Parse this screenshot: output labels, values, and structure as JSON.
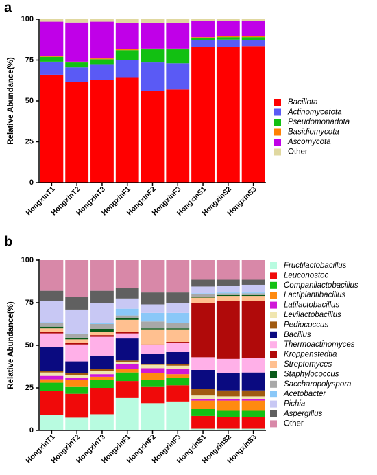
{
  "chart_data": [
    {
      "type": "bar",
      "panel": "a",
      "y_label": "Relative Abundance(%)",
      "categories": [
        "HongxinT1",
        "HongxinT2",
        "HongxinT3",
        "HongxinF1",
        "HongxinF2",
        "HongxinF3",
        "HongxinS1",
        "HongxinS2",
        "HongxinS3"
      ],
      "ylim": [
        0,
        100
      ],
      "yticks": [
        0,
        25,
        50,
        75,
        100
      ],
      "series": [
        {
          "name": "Bacillota",
          "color": "#ff0000",
          "values": [
            66,
            61.5,
            63,
            64.5,
            56,
            57,
            83,
            83,
            83.5
          ]
        },
        {
          "name": "Actinomycetota",
          "color": "#5a5af5",
          "values": [
            8,
            9,
            9.5,
            10.5,
            17.5,
            16,
            4,
            4.5,
            3.5
          ]
        },
        {
          "name": "Pseudomonadota",
          "color": "#12c012",
          "values": [
            3,
            3,
            3,
            6,
            8,
            8.5,
            1.5,
            1.5,
            2
          ]
        },
        {
          "name": "Basidiomycota",
          "color": "#ff8000",
          "values": [
            0.5,
            0.5,
            0.5,
            0.5,
            0.5,
            0.5,
            0.5,
            0.5,
            0.5
          ]
        },
        {
          "name": "Ascomycota",
          "color": "#c000e8",
          "values": [
            21,
            24,
            22.5,
            16,
            15.5,
            15.5,
            10,
            9.5,
            9.5
          ]
        },
        {
          "name": "Other",
          "color": "#e0d8a0",
          "values": [
            1.5,
            2,
            1.5,
            2.5,
            2.5,
            2.5,
            1,
            1,
            1
          ]
        }
      ]
    },
    {
      "type": "bar",
      "panel": "b",
      "y_label": "Relative Abundance(%)",
      "categories": [
        "HongxinT1",
        "HongxinT2",
        "HongxinT3",
        "HongxinF1",
        "HongxinF2",
        "HongxinF3",
        "HongxinS1",
        "HongxinS2",
        "HongxinS3"
      ],
      "ylim": [
        0,
        100
      ],
      "yticks": [
        0,
        25,
        50,
        75,
        100
      ],
      "series": [
        {
          "name": "Fructilactobacillus",
          "color": "#b8fbe0",
          "values": [
            9,
            7.5,
            9.5,
            19,
            16,
            17,
            1,
            1,
            1
          ]
        },
        {
          "name": "Leuconostoc",
          "color": "#f00a0a",
          "values": [
            14,
            14,
            15.5,
            10,
            9.5,
            9.5,
            7.5,
            7,
            7
          ]
        },
        {
          "name": "Companilactobacillus",
          "color": "#14c014",
          "values": [
            5,
            4,
            4.5,
            5,
            4,
            4.5,
            4,
            3.5,
            3.5
          ]
        },
        {
          "name": "Lactiplantibacillus",
          "color": "#ff8a10",
          "values": [
            2,
            4,
            2,
            2,
            4,
            2,
            5,
            6,
            6
          ]
        },
        {
          "name": "Latilactobacillus",
          "color": "#d018d8",
          "values": [
            2,
            1.5,
            1.5,
            3,
            3,
            3,
            1,
            1,
            1
          ]
        },
        {
          "name": "Levilactobacillus",
          "color": "#f0e6b0",
          "values": [
            2,
            1.5,
            2,
            1,
            2,
            2,
            2,
            1.5,
            1.5
          ]
        },
        {
          "name": "Pediococcus",
          "color": "#a05a10",
          "values": [
            1,
            1,
            1,
            1,
            0.5,
            1,
            4,
            3.5,
            3.5
          ]
        },
        {
          "name": "Bacillus",
          "color": "#0a0a80",
          "values": [
            14,
            7,
            8,
            13,
            6,
            7,
            11,
            10,
            10.5
          ]
        },
        {
          "name": "Thermoactinomyces",
          "color": "#ffb0e8",
          "values": [
            8,
            10,
            11,
            3,
            5,
            5.5,
            7.5,
            8.5,
            8.5
          ]
        },
        {
          "name": "Kroppenstedtia",
          "color": "#b00a0a",
          "values": [
            1,
            1,
            1,
            1,
            0.5,
            0.5,
            32,
            34,
            33.5
          ]
        },
        {
          "name": "Streptomyces",
          "color": "#ffc090",
          "values": [
            2,
            2,
            2,
            7,
            8.5,
            7,
            3,
            3,
            3
          ]
        },
        {
          "name": "Staphylococcus",
          "color": "#0a5a1a",
          "values": [
            1,
            1,
            1.5,
            1,
            1,
            1,
            0.5,
            0.5,
            0.5
          ]
        },
        {
          "name": "Saccharopolyspora",
          "color": "#a8a8a8",
          "values": [
            2,
            2,
            3,
            1.5,
            4,
            3,
            1.5,
            1,
            1
          ]
        },
        {
          "name": "Acetobacter",
          "color": "#8ac8f8",
          "values": [
            0.5,
            0.5,
            0.5,
            4,
            5,
            6,
            0.5,
            0.5,
            0.5
          ]
        },
        {
          "name": "Pichia",
          "color": "#c8c8f4",
          "values": [
            12.5,
            14,
            12,
            6,
            5,
            6,
            4,
            4,
            4.5
          ]
        },
        {
          "name": "Aspergillus",
          "color": "#606060",
          "values": [
            6,
            7.5,
            7,
            6,
            7,
            6,
            4,
            3.5,
            3
          ]
        },
        {
          "name": "Other",
          "color": "#d888a8",
          "values": [
            18,
            21.5,
            18,
            16.5,
            19,
            19,
            11.5,
            11.5,
            11.5
          ]
        }
      ]
    }
  ]
}
